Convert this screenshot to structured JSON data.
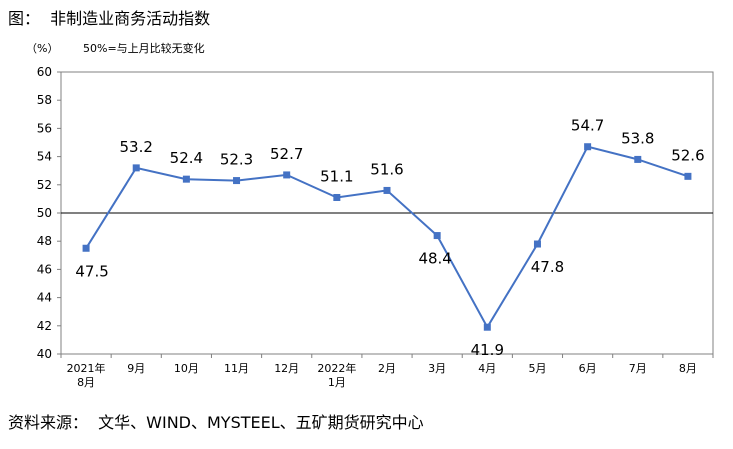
{
  "figure_title": "图：  非制造业商务活动指数",
  "source": "资料来源：  文华、WIND、MYSTEEL、五矿期货研究中心",
  "chart_data": {
    "type": "line",
    "unit": "（%）",
    "note": "50%=与上月比较无变化",
    "categories": [
      [
        "2021年",
        "8月"
      ],
      [
        "9月"
      ],
      [
        "10月"
      ],
      [
        "11月"
      ],
      [
        "12月"
      ],
      [
        "2022年",
        "1月"
      ],
      [
        "2月"
      ],
      [
        "3月"
      ],
      [
        "4月"
      ],
      [
        "5月"
      ],
      [
        "6月"
      ],
      [
        "7月"
      ],
      [
        "8月"
      ]
    ],
    "series": [
      {
        "values": [
          47.5,
          53.2,
          52.4,
          52.3,
          52.7,
          51.1,
          51.6,
          48.4,
          41.9,
          47.8,
          54.7,
          53.8,
          52.6
        ]
      }
    ],
    "labels": [
      "47.5",
      "53.2",
      "52.4",
      "52.3",
      "52.7",
      "51.1",
      "51.6",
      "48.4",
      "41.9",
      "47.8",
      "54.7",
      "53.8",
      "52.6"
    ],
    "ylim": [
      40,
      60
    ],
    "yticks": [
      40,
      42,
      44,
      46,
      48,
      50,
      52,
      54,
      56,
      58,
      60
    ],
    "reference_line": 50,
    "color": "#4472C4"
  }
}
